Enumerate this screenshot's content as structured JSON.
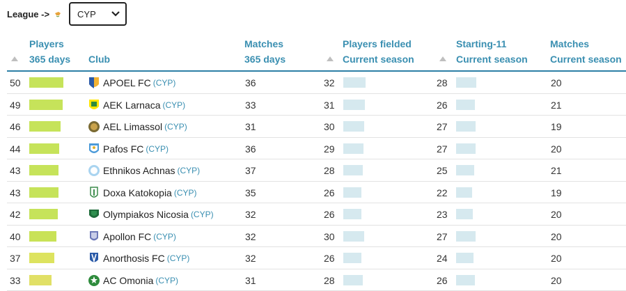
{
  "filter": {
    "label": "League ->",
    "selected": "CYP",
    "flag_icon": "cyprus-flag-icon"
  },
  "headers": {
    "players_365": [
      "Players",
      "365 days"
    ],
    "club": "Club",
    "matches_365": [
      "Matches",
      "365 days"
    ],
    "players_fielded": [
      "Players fielded",
      "Current season"
    ],
    "starting11": [
      "Starting-11",
      "Current season"
    ],
    "matches_current": [
      "Matches",
      "Current season"
    ]
  },
  "colors": {
    "accent": "#3a8fb1",
    "bar_players": [
      "#c6e35a",
      "#c6e35a",
      "#c6e35a",
      "#c6e35a",
      "#c6e35a",
      "#c6e35a",
      "#c6e35a",
      "#c9e257",
      "#dde35f",
      "#e1e066"
    ],
    "bar_light": "#d6e9ef"
  },
  "rows": [
    {
      "players": "50",
      "club": "APOEL FC",
      "country": "(CYP)",
      "matches": "36",
      "fielded": "32",
      "starting": "28",
      "matches_cur": "20",
      "crest": "apoel-crest-icon"
    },
    {
      "players": "49",
      "club": "AEK Larnaca",
      "country": "(CYP)",
      "matches": "33",
      "fielded": "31",
      "starting": "26",
      "matches_cur": "21",
      "crest": "aek-larnaca-crest-icon"
    },
    {
      "players": "46",
      "club": "AEL Limassol",
      "country": "(CYP)",
      "matches": "31",
      "fielded": "30",
      "starting": "27",
      "matches_cur": "19",
      "crest": "ael-limassol-crest-icon"
    },
    {
      "players": "44",
      "club": "Pafos FC",
      "country": "(CYP)",
      "matches": "36",
      "fielded": "29",
      "starting": "27",
      "matches_cur": "20",
      "crest": "pafos-crest-icon"
    },
    {
      "players": "43",
      "club": "Ethnikos Achnas",
      "country": "(CYP)",
      "matches": "37",
      "fielded": "28",
      "starting": "25",
      "matches_cur": "21",
      "crest": "ethnikos-achnas-crest-icon"
    },
    {
      "players": "43",
      "club": "Doxa Katokopia",
      "country": "(CYP)",
      "matches": "35",
      "fielded": "26",
      "starting": "22",
      "matches_cur": "19",
      "crest": "doxa-katokopia-crest-icon"
    },
    {
      "players": "42",
      "club": "Olympiakos Nicosia",
      "country": "(CYP)",
      "matches": "32",
      "fielded": "26",
      "starting": "23",
      "matches_cur": "20",
      "crest": "olympiakos-nicosia-crest-icon"
    },
    {
      "players": "40",
      "club": "Apollon FC",
      "country": "(CYP)",
      "matches": "32",
      "fielded": "30",
      "starting": "27",
      "matches_cur": "20",
      "crest": "apollon-crest-icon"
    },
    {
      "players": "37",
      "club": "Anorthosis FC",
      "country": "(CYP)",
      "matches": "32",
      "fielded": "26",
      "starting": "24",
      "matches_cur": "20",
      "crest": "anorthosis-crest-icon"
    },
    {
      "players": "33",
      "club": "AC Omonia",
      "country": "(CYP)",
      "matches": "31",
      "fielded": "28",
      "starting": "26",
      "matches_cur": "20",
      "crest": "omonia-crest-icon"
    }
  ]
}
